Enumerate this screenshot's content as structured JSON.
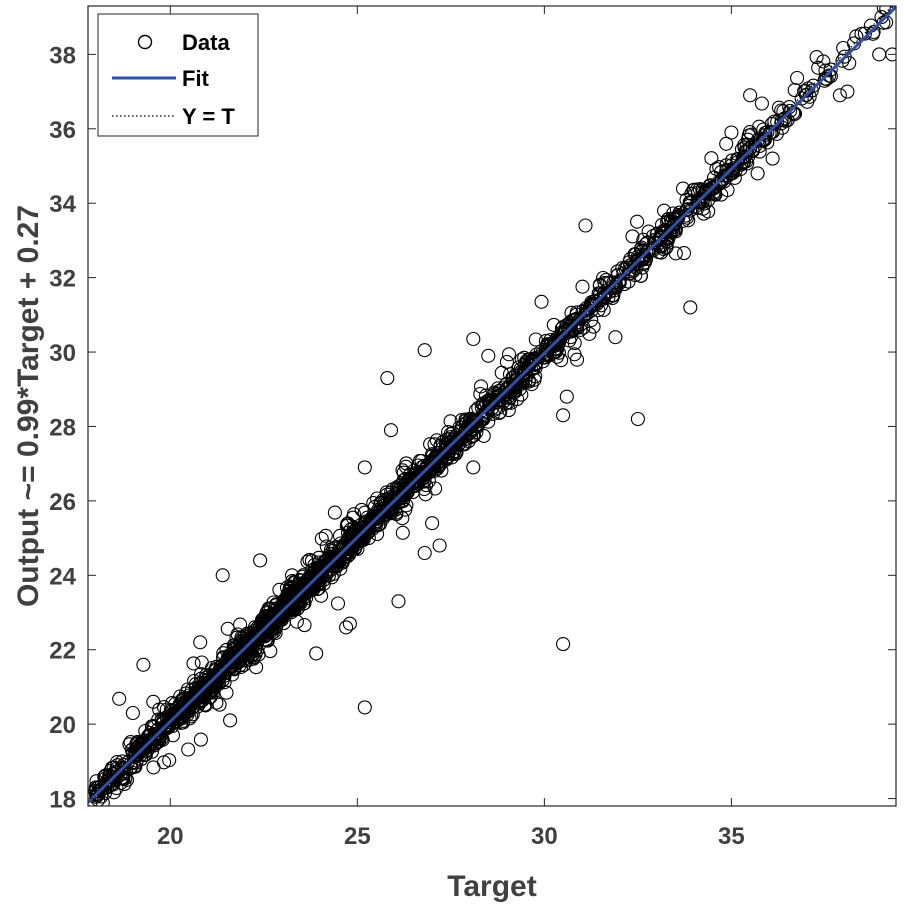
{
  "chart_data": {
    "type": "scatter",
    "xlabel": "Target",
    "ylabel": "Output ~= 0.99*Target + 0.27",
    "xlim": [
      17.8,
      39.4
    ],
    "ylim": [
      17.8,
      39.3
    ],
    "xticks": [
      20,
      25,
      30,
      35
    ],
    "yticks": [
      18,
      20,
      22,
      24,
      26,
      28,
      30,
      32,
      34,
      36,
      38
    ],
    "grid": false,
    "legend_position": "top-left",
    "legend": [
      {
        "label": "Data",
        "marker": "circle"
      },
      {
        "label": "Fit",
        "style": "solid"
      },
      {
        "label": "Y = T",
        "style": "dotted"
      }
    ],
    "fit": {
      "slope": 0.99,
      "intercept": 0.27
    },
    "point_count": 2000,
    "points": [
      {
        "x": 25.2,
        "y": 20.45
      },
      {
        "x": 30.5,
        "y": 22.15
      },
      {
        "x": 26.1,
        "y": 23.3
      },
      {
        "x": 32.5,
        "y": 28.2
      },
      {
        "x": 33.9,
        "y": 31.2
      },
      {
        "x": 30.5,
        "y": 28.3
      },
      {
        "x": 30.6,
        "y": 28.8
      },
      {
        "x": 26.8,
        "y": 30.05
      },
      {
        "x": 28.1,
        "y": 30.35
      },
      {
        "x": 25.8,
        "y": 29.3
      },
      {
        "x": 31.1,
        "y": 33.4
      },
      {
        "x": 21.4,
        "y": 24.0
      },
      {
        "x": 21.6,
        "y": 20.1
      },
      {
        "x": 19.0,
        "y": 20.3
      },
      {
        "x": 23.9,
        "y": 21.9
      },
      {
        "x": 24.7,
        "y": 22.6
      },
      {
        "x": 24.8,
        "y": 22.7
      },
      {
        "x": 26.8,
        "y": 24.6
      },
      {
        "x": 27.2,
        "y": 24.8
      },
      {
        "x": 27.0,
        "y": 25.4
      },
      {
        "x": 25.2,
        "y": 26.9
      },
      {
        "x": 25.9,
        "y": 27.9
      },
      {
        "x": 35.7,
        "y": 34.8
      },
      {
        "x": 36.1,
        "y": 35.2
      },
      {
        "x": 37.0,
        "y": 36.9
      },
      {
        "x": 37.9,
        "y": 36.9
      },
      {
        "x": 38.1,
        "y": 37.0
      },
      {
        "x": 38.95,
        "y": 38.0
      },
      {
        "x": 39.3,
        "y": 38.0
      },
      {
        "x": 35.5,
        "y": 36.9
      },
      {
        "x": 20.8,
        "y": 22.2
      },
      {
        "x": 22.4,
        "y": 24.4
      },
      {
        "x": 28.5,
        "y": 29.9
      },
      {
        "x": 31.9,
        "y": 30.4
      },
      {
        "x": 28.1,
        "y": 26.9
      },
      {
        "x": 33.2,
        "y": 33.8
      },
      {
        "x": 35.0,
        "y": 35.9
      },
      {
        "x": 18.0,
        "y": 18.2
      },
      {
        "x": 18.3,
        "y": 18.45
      },
      {
        "x": 38.8,
        "y": 38.6
      }
    ]
  }
}
